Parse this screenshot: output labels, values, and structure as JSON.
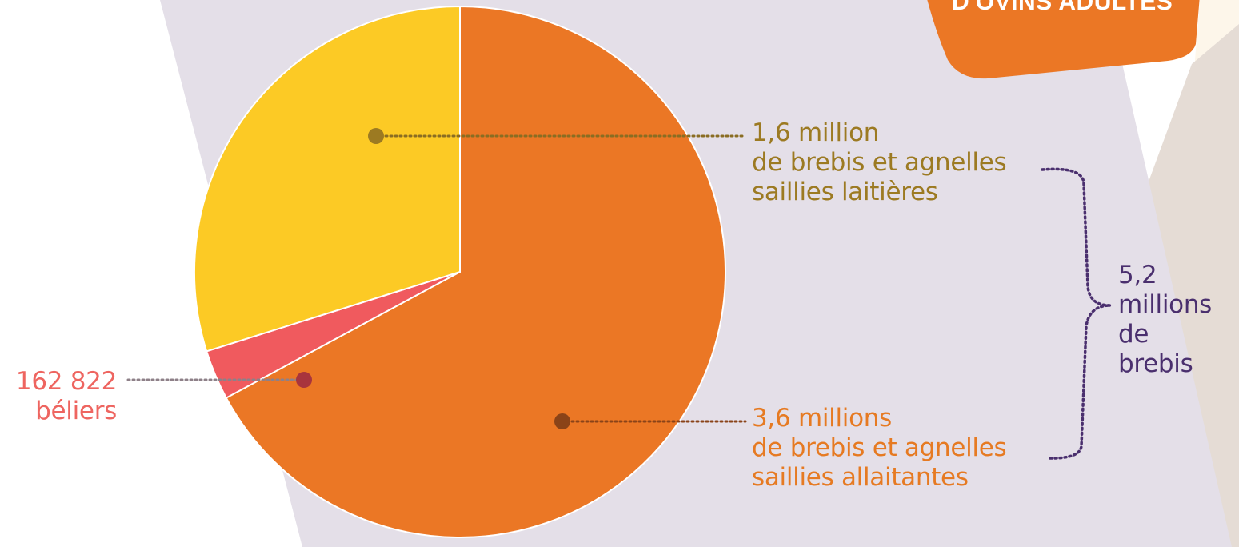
{
  "header": {
    "badge_text": "D'OVINS ADULTES"
  },
  "labels": {
    "dairy": {
      "value": "1,6 million",
      "line2": "de brebis et agnelles",
      "line3": "saillies laitières"
    },
    "suckler": {
      "value": "3,6 millions",
      "line2": "de brebis et agnelles",
      "line3": "saillies allaitantes"
    },
    "rams": {
      "value": "162 822",
      "line2": "béliers"
    },
    "total": {
      "line1": "5,2",
      "line2": "millions",
      "line3": "de",
      "line4": "brebis"
    }
  },
  "colors": {
    "panel": "#e4dfe8",
    "badge": "#eb7725",
    "suckler": "#eb7725",
    "dairy": "#fcca25",
    "rams": "#f05a5e",
    "bracket": "#4a2f6e"
  },
  "chart_data": {
    "type": "pie",
    "start_angle_deg": 0,
    "direction": "clockwise",
    "slices": [
      {
        "label": "3,6 millions de brebis et agnelles saillies allaitantes",
        "value": 3600000,
        "color": "#eb7725"
      },
      {
        "label": "162 822 béliers",
        "value": 162822,
        "color": "#f05a5e"
      },
      {
        "label": "1,6 million de brebis et agnelles saillies laitières",
        "value": 1600000,
        "color": "#fcca25"
      }
    ]
  }
}
